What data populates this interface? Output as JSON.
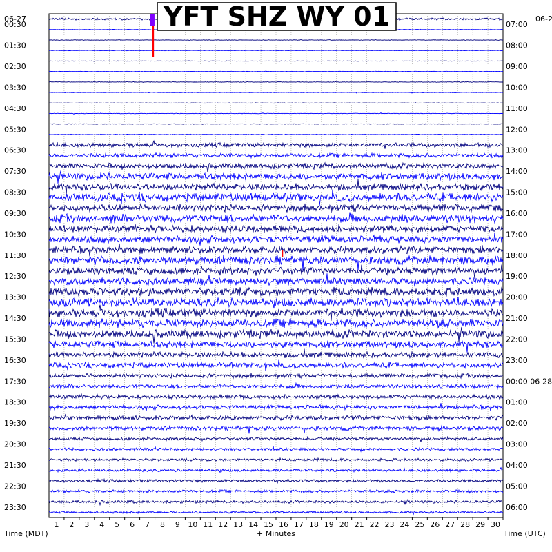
{
  "chart_data": {
    "type": "line",
    "title": "YFT SHZ WY 01",
    "xlabel": "+ Minutes",
    "left_axis_label": "Time (MDT)",
    "right_axis_label": "Time (UTC)",
    "date_left": "06-27",
    "date_right_top": "06-2",
    "x_ticks": [
      "1",
      "2",
      "3",
      "4",
      "5",
      "6",
      "7",
      "8",
      "9",
      "10",
      "11",
      "12",
      "13",
      "14",
      "15",
      "16",
      "17",
      "18",
      "19",
      "20",
      "21",
      "22",
      "23",
      "24",
      "25",
      "26",
      "27",
      "28",
      "29",
      "30"
    ],
    "xlim": [
      0,
      30
    ],
    "left_times": [
      "00:30",
      "01:30",
      "02:30",
      "03:30",
      "04:30",
      "05:30",
      "06:30",
      "07:30",
      "08:30",
      "09:30",
      "10:30",
      "11:30",
      "12:30",
      "13:30",
      "14:30",
      "15:30",
      "16:30",
      "17:30",
      "18:30",
      "19:30",
      "20:30",
      "21:30",
      "22:30",
      "23:30"
    ],
    "right_times": [
      "07:00",
      "08:00",
      "09:00",
      "10:00",
      "11:00",
      "12:00",
      "13:00",
      "14:00",
      "15:00",
      "16:00",
      "17:00",
      "18:00",
      "19:00",
      "20:00",
      "21:00",
      "22:00",
      "23:00",
      "00:00 06-28",
      "01:00",
      "02:00",
      "03:00",
      "04:00",
      "05:00",
      "06:00"
    ],
    "trace_colors": [
      "#00007f",
      "#0000ff",
      "#000000"
    ],
    "trace_count": 48,
    "trace_amplitudes": [
      1.5,
      0.4,
      0.4,
      0.4,
      0.4,
      0.4,
      0.4,
      0.4,
      0.4,
      0.4,
      0.5,
      0.5,
      3,
      3,
      4,
      5,
      5,
      6,
      5,
      6,
      5,
      5,
      5,
      6,
      5,
      5,
      6,
      6,
      6,
      6,
      6,
      5,
      4,
      4,
      3,
      3,
      3,
      3,
      3,
      3,
      2,
      2,
      2,
      2,
      2,
      2,
      2,
      1.5
    ]
  }
}
